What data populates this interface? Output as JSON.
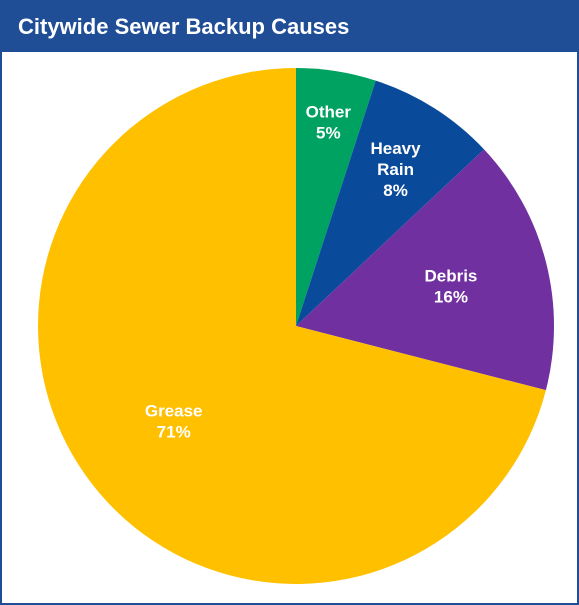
{
  "chart_data": {
    "type": "pie",
    "title": "Citywide Sewer Backup Causes",
    "start_angle_deg": 0,
    "direction": "clockwise",
    "slices": [
      {
        "label_lines": [
          "Other"
        ],
        "percent_label": "5%",
        "value": 5,
        "color": "#00a261"
      },
      {
        "label_lines": [
          "Heavy",
          "Rain"
        ],
        "percent_label": "8%",
        "value": 8,
        "color": "#0a4a9a"
      },
      {
        "label_lines": [
          "Debris"
        ],
        "percent_label": "16%",
        "value": 16,
        "color": "#7030a0"
      },
      {
        "label_lines": [
          "Grease"
        ],
        "percent_label": "71%",
        "value": 71,
        "color": "#ffc000"
      }
    ]
  }
}
